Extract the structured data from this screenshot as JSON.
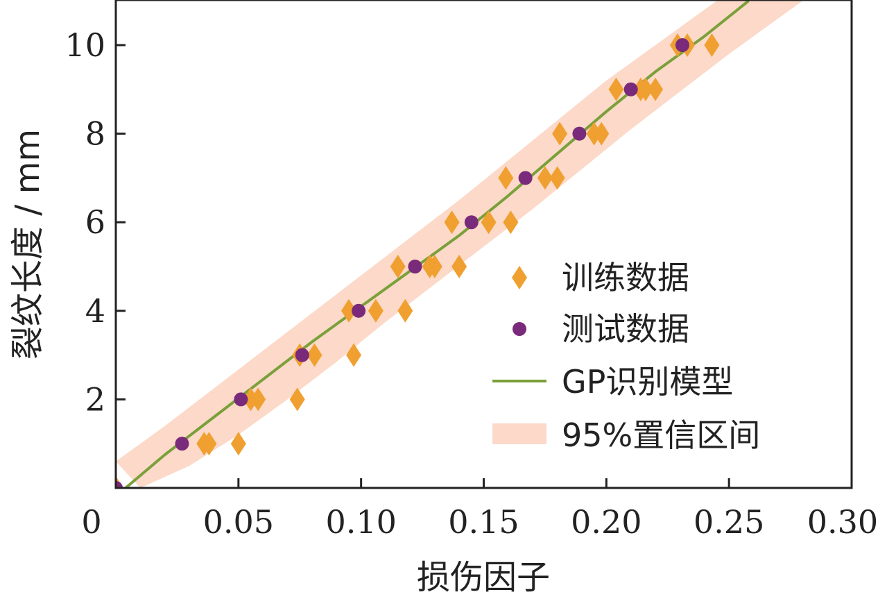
{
  "chart_data": {
    "type": "scatter",
    "xlabel": "损伤因子",
    "ylabel": "裂纹长度 / mm",
    "xlim": [
      0,
      0.3
    ],
    "ylim": [
      0,
      11
    ],
    "x_ticks": [
      0,
      0.05,
      0.1,
      0.15,
      0.2,
      0.25,
      0.3
    ],
    "x_tick_labels": [
      "0",
      "0.05",
      "0.10",
      "0.15",
      "0.20",
      "0.25",
      "0.30"
    ],
    "y_ticks": [
      2,
      4,
      6,
      8,
      10
    ],
    "y_tick_labels": [
      "2",
      "4",
      "6",
      "8",
      "10"
    ],
    "grid": false,
    "legend_position": "bottom-right",
    "colors": {
      "train": "#f0a030",
      "test": "#7a2a7a",
      "model": "#7aa03a",
      "band": "#fcd9c8"
    },
    "series": [
      {
        "name": "训练数据",
        "kind": "scatter",
        "marker": "diamond",
        "points": [
          [
            0.0,
            0
          ],
          [
            0.036,
            1
          ],
          [
            0.038,
            1
          ],
          [
            0.05,
            1
          ],
          [
            0.055,
            2
          ],
          [
            0.058,
            2
          ],
          [
            0.074,
            2
          ],
          [
            0.075,
            3
          ],
          [
            0.081,
            3
          ],
          [
            0.097,
            3
          ],
          [
            0.095,
            4
          ],
          [
            0.106,
            4
          ],
          [
            0.118,
            4
          ],
          [
            0.115,
            5
          ],
          [
            0.128,
            5
          ],
          [
            0.13,
            5
          ],
          [
            0.14,
            5
          ],
          [
            0.137,
            6
          ],
          [
            0.152,
            6
          ],
          [
            0.161,
            6
          ],
          [
            0.159,
            7
          ],
          [
            0.175,
            7
          ],
          [
            0.18,
            7
          ],
          [
            0.181,
            8
          ],
          [
            0.195,
            8
          ],
          [
            0.198,
            8
          ],
          [
            0.204,
            9
          ],
          [
            0.214,
            9
          ],
          [
            0.216,
            9
          ],
          [
            0.22,
            9
          ],
          [
            0.229,
            10
          ],
          [
            0.233,
            10
          ],
          [
            0.243,
            10
          ]
        ]
      },
      {
        "name": "测试数据",
        "kind": "scatter",
        "marker": "circle",
        "points": [
          [
            0.0,
            0
          ],
          [
            0.027,
            1
          ],
          [
            0.051,
            2
          ],
          [
            0.076,
            3
          ],
          [
            0.099,
            4
          ],
          [
            0.122,
            5
          ],
          [
            0.145,
            6
          ],
          [
            0.167,
            7
          ],
          [
            0.189,
            8
          ],
          [
            0.21,
            9
          ],
          [
            0.231,
            10
          ]
        ]
      },
      {
        "name": "GP识别模型",
        "kind": "line",
        "points": [
          [
            0.004,
            0
          ],
          [
            0.02,
            0.75
          ],
          [
            0.04,
            1.6
          ],
          [
            0.06,
            2.45
          ],
          [
            0.08,
            3.3
          ],
          [
            0.1,
            4.1
          ],
          [
            0.12,
            4.9
          ],
          [
            0.14,
            5.7
          ],
          [
            0.16,
            6.6
          ],
          [
            0.18,
            7.55
          ],
          [
            0.2,
            8.5
          ],
          [
            0.22,
            9.4
          ],
          [
            0.24,
            10.2
          ],
          [
            0.258,
            11.0
          ]
        ]
      },
      {
        "name": "95%置信区间",
        "kind": "band",
        "lower": [
          [
            0.01,
            0
          ],
          [
            0.03,
            0.5
          ],
          [
            0.05,
            1.2
          ],
          [
            0.07,
            2.0
          ],
          [
            0.09,
            2.85
          ],
          [
            0.11,
            3.75
          ],
          [
            0.13,
            4.6
          ],
          [
            0.15,
            5.45
          ],
          [
            0.17,
            6.3
          ],
          [
            0.19,
            7.2
          ],
          [
            0.21,
            8.1
          ],
          [
            0.23,
            8.95
          ],
          [
            0.25,
            9.8
          ],
          [
            0.28,
            11.0
          ]
        ],
        "upper": [
          [
            0.0,
            0.6
          ],
          [
            0.02,
            1.4
          ],
          [
            0.04,
            2.25
          ],
          [
            0.06,
            3.1
          ],
          [
            0.08,
            3.95
          ],
          [
            0.1,
            4.8
          ],
          [
            0.12,
            5.65
          ],
          [
            0.14,
            6.5
          ],
          [
            0.16,
            7.4
          ],
          [
            0.18,
            8.3
          ],
          [
            0.2,
            9.2
          ],
          [
            0.22,
            10.0
          ],
          [
            0.245,
            11.0
          ]
        ]
      }
    ]
  }
}
